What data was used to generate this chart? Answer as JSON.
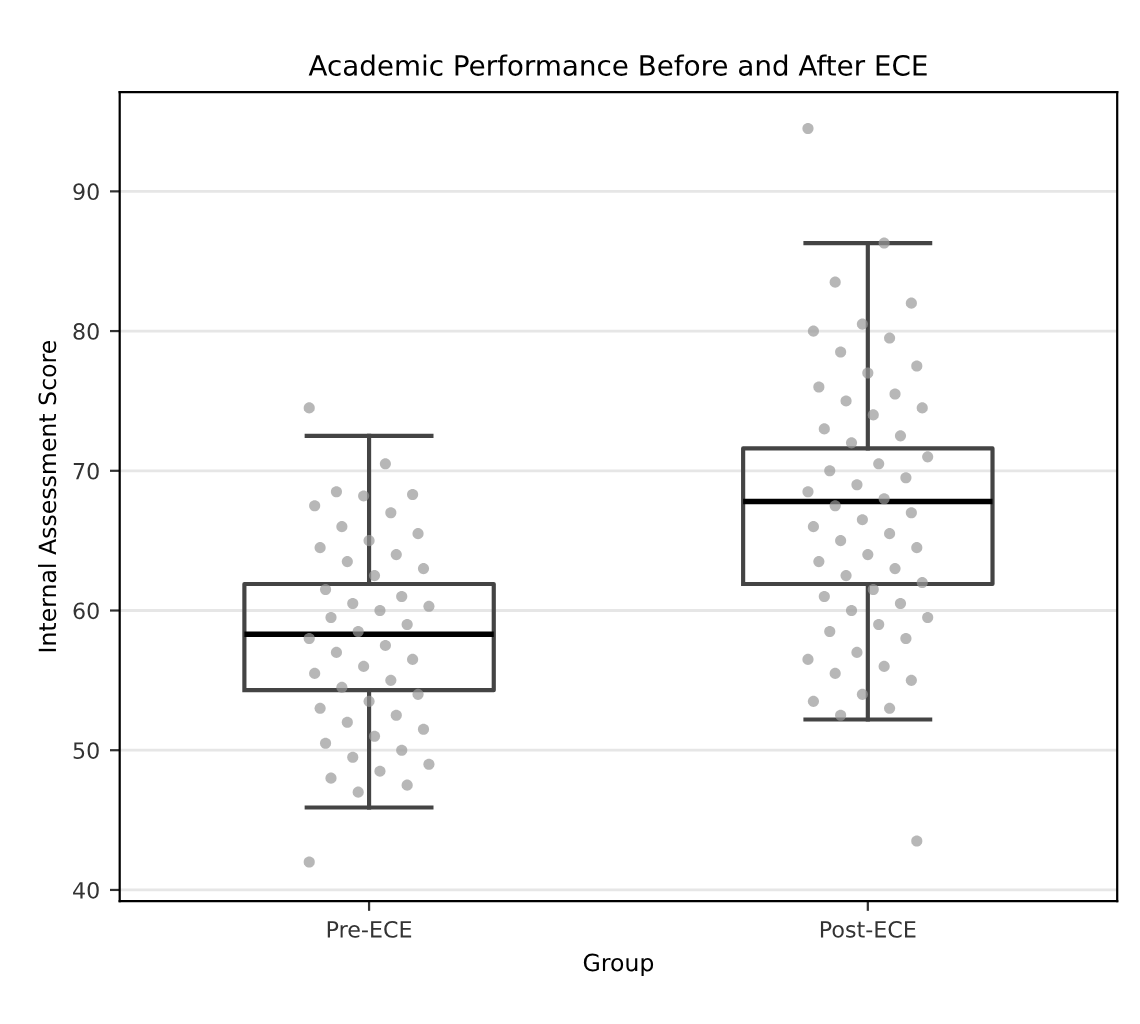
{
  "chart_data": {
    "type": "box",
    "title": "Academic Performance Before and After ECE",
    "xlabel": "Group",
    "ylabel": "Internal Assessment Score",
    "categories": [
      "Pre-ECE",
      "Post-ECE"
    ],
    "boxes": [
      {
        "low": 45.9,
        "q1": 54.3,
        "median": 58.3,
        "q3": 61.9,
        "high": 72.5
      },
      {
        "low": 52.2,
        "q1": 61.9,
        "median": 67.8,
        "q3": 71.6,
        "high": 86.3
      }
    ],
    "ylim": [
      39.2,
      97.1
    ],
    "yticks": [
      40,
      50,
      60,
      70,
      80,
      90
    ],
    "grid": "y",
    "series": [
      {
        "type": "scatter",
        "color": "#999999",
        "x": [
          "Pre-ECE",
          "Pre-ECE",
          "Pre-ECE",
          "Pre-ECE",
          "Pre-ECE",
          "Pre-ECE",
          "Pre-ECE",
          "Pre-ECE",
          "Pre-ECE",
          "Pre-ECE",
          "Pre-ECE",
          "Pre-ECE",
          "Pre-ECE",
          "Pre-ECE",
          "Pre-ECE",
          "Pre-ECE",
          "Pre-ECE",
          "Pre-ECE",
          "Pre-ECE",
          "Pre-ECE",
          "Pre-ECE",
          "Pre-ECE",
          "Pre-ECE",
          "Pre-ECE",
          "Pre-ECE",
          "Pre-ECE",
          "Pre-ECE",
          "Pre-ECE",
          "Pre-ECE",
          "Pre-ECE",
          "Pre-ECE",
          "Pre-ECE",
          "Pre-ECE",
          "Pre-ECE",
          "Pre-ECE",
          "Pre-ECE",
          "Pre-ECE",
          "Pre-ECE",
          "Pre-ECE",
          "Pre-ECE",
          "Pre-ECE",
          "Pre-ECE",
          "Pre-ECE",
          "Pre-ECE",
          "Pre-ECE",
          "Pre-ECE",
          "Pre-ECE"
        ],
        "values": [
          74.5,
          70.5,
          68.5,
          68.3,
          68.2,
          67.5,
          67,
          66,
          65.5,
          65,
          64.5,
          64,
          63.5,
          63,
          62.5,
          61.5,
          61,
          60.5,
          60.3,
          60,
          59.5,
          59,
          58.5,
          58,
          57.5,
          57,
          56.5,
          56,
          55.5,
          55,
          54.5,
          54,
          53.5,
          53,
          52.5,
          52,
          51.5,
          51,
          50.5,
          50,
          49.5,
          49,
          48.5,
          48,
          47.5,
          47,
          42
        ]
      },
      {
        "type": "scatter",
        "color": "#999999",
        "x": [
          "Post-ECE",
          "Post-ECE",
          "Post-ECE",
          "Post-ECE",
          "Post-ECE",
          "Post-ECE",
          "Post-ECE",
          "Post-ECE",
          "Post-ECE",
          "Post-ECE",
          "Post-ECE",
          "Post-ECE",
          "Post-ECE",
          "Post-ECE",
          "Post-ECE",
          "Post-ECE",
          "Post-ECE",
          "Post-ECE",
          "Post-ECE",
          "Post-ECE",
          "Post-ECE",
          "Post-ECE",
          "Post-ECE",
          "Post-ECE",
          "Post-ECE",
          "Post-ECE",
          "Post-ECE",
          "Post-ECE",
          "Post-ECE",
          "Post-ECE",
          "Post-ECE",
          "Post-ECE",
          "Post-ECE",
          "Post-ECE",
          "Post-ECE",
          "Post-ECE",
          "Post-ECE",
          "Post-ECE",
          "Post-ECE",
          "Post-ECE",
          "Post-ECE",
          "Post-ECE",
          "Post-ECE",
          "Post-ECE",
          "Post-ECE",
          "Post-ECE",
          "Post-ECE",
          "Post-ECE",
          "Post-ECE",
          "Post-ECE",
          "Post-ECE",
          "Post-ECE",
          "Post-ECE",
          "Post-ECE",
          "Post-ECE"
        ],
        "values": [
          94.5,
          86.3,
          83.5,
          82,
          80.5,
          80,
          79.5,
          78.5,
          77.5,
          77,
          76,
          75.5,
          75,
          74.5,
          74,
          73,
          72.5,
          72,
          71,
          70.5,
          70,
          69.5,
          69,
          68.5,
          68,
          67.5,
          67,
          66.5,
          66,
          65.5,
          65,
          64.5,
          64,
          63.5,
          63,
          62.5,
          62,
          61.5,
          61,
          60.5,
          60,
          59.5,
          59,
          58.5,
          58,
          57,
          56.5,
          56,
          55.5,
          55,
          54,
          53.5,
          53,
          52.5,
          43.5
        ]
      }
    ]
  }
}
